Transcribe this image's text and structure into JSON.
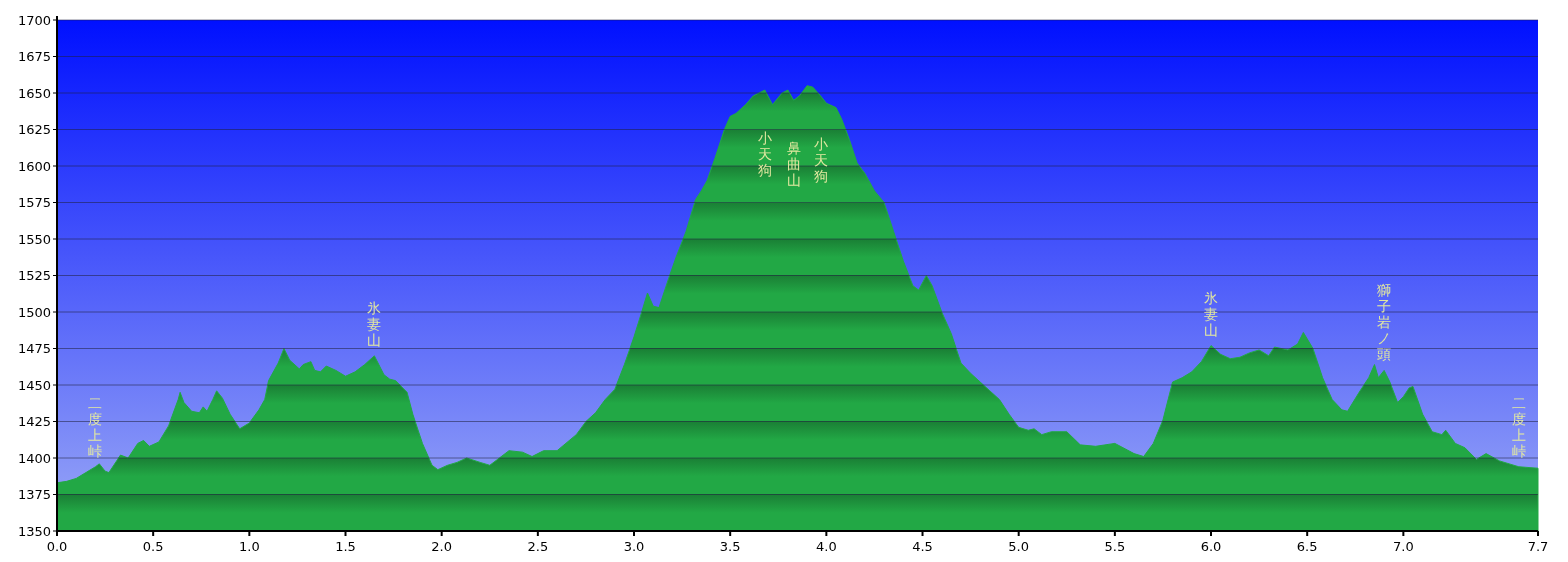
{
  "chart_data": {
    "type": "area",
    "color": "#22a845",
    "grid": "y",
    "xlim": [
      0,
      7.7
    ],
    "ylim": [
      1350,
      1700
    ],
    "xticks": [
      {
        "value": 0,
        "label": "0.0"
      },
      0.5,
      {
        "value": 1,
        "label": "1.0"
      },
      1.5,
      {
        "value": 2,
        "label": "2.0"
      },
      2.5,
      {
        "value": 3,
        "label": "3.0"
      },
      3.5,
      {
        "value": 4,
        "label": "4.0"
      },
      4.5,
      {
        "value": 5,
        "label": "5.0"
      },
      5.5,
      {
        "value": 6,
        "label": "6.0"
      },
      6.5,
      {
        "value": 7,
        "label": "7.0"
      },
      7.7
    ],
    "yticks": [
      1350,
      1375,
      1400,
      1425,
      1450,
      1475,
      1500,
      1525,
      1550,
      1575,
      1600,
      1625,
      1650,
      1675,
      1700
    ],
    "x": [
      0.0,
      0.05,
      0.1,
      0.15,
      0.2,
      0.22,
      0.25,
      0.27,
      0.33,
      0.37,
      0.42,
      0.45,
      0.48,
      0.53,
      0.58,
      0.63,
      0.64,
      0.66,
      0.7,
      0.74,
      0.76,
      0.78,
      0.81,
      0.83,
      0.86,
      0.9,
      0.95,
      1.0,
      1.05,
      1.08,
      1.1,
      1.15,
      1.18,
      1.21,
      1.26,
      1.28,
      1.32,
      1.34,
      1.37,
      1.4,
      1.45,
      1.5,
      1.55,
      1.6,
      1.65,
      1.7,
      1.73,
      1.76,
      1.82,
      1.85,
      1.9,
      1.95,
      1.98,
      2.03,
      2.08,
      2.13,
      2.2,
      2.25,
      2.3,
      2.35,
      2.42,
      2.47,
      2.5,
      2.53,
      2.6,
      2.7,
      2.75,
      2.8,
      2.85,
      2.9,
      2.95,
      3.0,
      3.04,
      3.07,
      3.1,
      3.13,
      3.18,
      3.22,
      3.27,
      3.32,
      3.35,
      3.38,
      3.42,
      3.47,
      3.5,
      3.53,
      3.58,
      3.62,
      3.68,
      3.72,
      3.77,
      3.8,
      3.83,
      3.86,
      3.9,
      3.93,
      3.97,
      4.0,
      4.05,
      4.08,
      4.12,
      4.16,
      4.2,
      4.25,
      4.3,
      4.35,
      4.4,
      4.45,
      4.48,
      4.52,
      4.55,
      4.6,
      4.65,
      4.7,
      4.75,
      4.8,
      4.85,
      4.9,
      4.95,
      5.0,
      5.05,
      5.08,
      5.12,
      5.17,
      5.25,
      5.32,
      5.4,
      5.5,
      5.6,
      5.65,
      5.7,
      5.75,
      5.8,
      5.85,
      5.9,
      5.95,
      6.0,
      6.05,
      6.1,
      6.15,
      6.2,
      6.25,
      6.3,
      6.33,
      6.4,
      6.45,
      6.48,
      6.53,
      6.58,
      6.63,
      6.68,
      6.71,
      6.77,
      6.82,
      6.85,
      6.87,
      6.9,
      6.93,
      6.97,
      7.0,
      7.03,
      7.05,
      7.1,
      7.15,
      7.2,
      7.22,
      7.27,
      7.32,
      7.38,
      7.43,
      7.5,
      7.6,
      7.7
    ],
    "values": [
      1383,
      1384,
      1386,
      1390,
      1394,
      1396,
      1391,
      1390,
      1402,
      1400,
      1410,
      1412,
      1408,
      1411,
      1422,
      1440,
      1445,
      1438,
      1432,
      1431,
      1435,
      1432,
      1440,
      1446,
      1441,
      1430,
      1420,
      1424,
      1433,
      1440,
      1453,
      1465,
      1475,
      1467,
      1461,
      1464,
      1466,
      1460,
      1459,
      1463,
      1460,
      1456,
      1459,
      1464,
      1470,
      1457,
      1454,
      1453,
      1445,
      1430,
      1410,
      1395,
      1392,
      1395,
      1397,
      1400,
      1397,
      1395,
      1400,
      1405,
      1404,
      1401,
      1403,
      1405,
      1405,
      1416,
      1425,
      1431,
      1440,
      1447,
      1464,
      1483,
      1500,
      1513,
      1504,
      1503,
      1523,
      1538,
      1555,
      1577,
      1583,
      1590,
      1605,
      1625,
      1634,
      1636,
      1642,
      1648,
      1652,
      1642,
      1650,
      1652,
      1645,
      1648,
      1655,
      1654,
      1648,
      1643,
      1640,
      1632,
      1618,
      1602,
      1595,
      1583,
      1575,
      1555,
      1535,
      1518,
      1515,
      1525,
      1518,
      1500,
      1485,
      1465,
      1458,
      1452,
      1446,
      1440,
      1430,
      1421,
      1419,
      1420,
      1416,
      1418,
      1418,
      1409,
      1408,
      1410,
      1403,
      1401,
      1410,
      1426,
      1452,
      1455,
      1459,
      1466,
      1477,
      1471,
      1468,
      1469,
      1472,
      1474,
      1470,
      1476,
      1474,
      1478,
      1486,
      1475,
      1455,
      1440,
      1433,
      1432,
      1445,
      1455,
      1464,
      1455,
      1460,
      1452,
      1438,
      1442,
      1448,
      1449,
      1430,
      1418,
      1416,
      1419,
      1410,
      1407,
      1399,
      1403,
      1398,
      1394,
      1393
    ],
    "annotations": [
      {
        "text": "二度上峠",
        "x": 0.2,
        "y": 1394
      },
      {
        "text": "氷妻山",
        "x": 1.65,
        "y": 1470
      },
      {
        "text": "小天狗",
        "x": 3.68,
        "y": 1652
      },
      {
        "text": "鼻曲山",
        "x": 3.83,
        "y": 1645
      },
      {
        "text": "小天狗",
        "x": 3.97,
        "y": 1648
      },
      {
        "text": "氷妻山",
        "x": 6.0,
        "y": 1477
      },
      {
        "text": "獅子岩ノ頭",
        "x": 6.9,
        "y": 1460
      },
      {
        "text": "二度上峠",
        "x": 7.6,
        "y": 1394
      }
    ]
  }
}
